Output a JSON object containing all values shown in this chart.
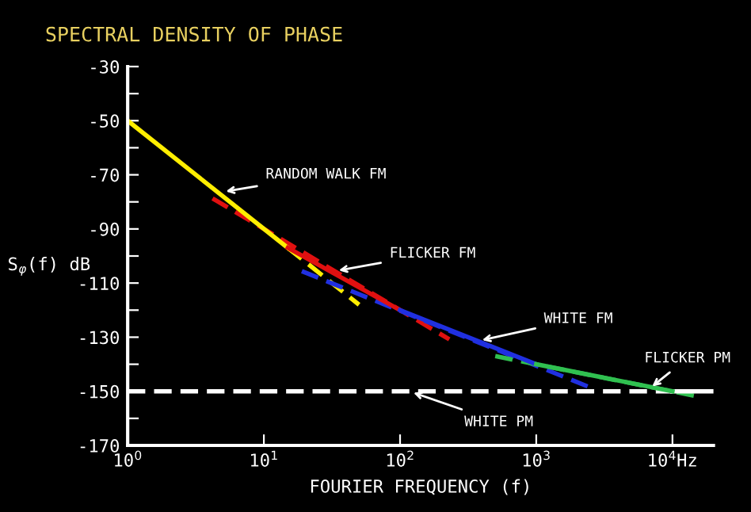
{
  "chart_data": {
    "type": "line",
    "title": "SPECTRAL DENSITY OF PHASE",
    "xlabel": "FOURIER FREQUENCY (f)",
    "ylabel": "S$_{φ}$(f) dB",
    "log": "x",
    "grid": false,
    "legend": false,
    "marker": "none",
    "xlim": [
      1,
      20000
    ],
    "xticks": [
      {
        "value": 1,
        "label": "10$^{0}$"
      },
      {
        "value": 10,
        "label": "10$^{1}$"
      },
      {
        "value": 100,
        "label": "10$^{2}$"
      },
      {
        "value": 1000,
        "label": "10$^{3}$"
      },
      {
        "value": 10000,
        "label": "10$^{4}$Hz"
      }
    ],
    "ylim": [
      -170,
      -30
    ],
    "yticks": [
      -30,
      {
        "value": -40,
        "label": null
      },
      -50,
      {
        "value": -60,
        "label": null
      },
      -70,
      {
        "value": -80,
        "label": null
      },
      -90,
      {
        "value": -100,
        "label": null
      },
      -110,
      {
        "value": -120,
        "label": null
      },
      -130,
      {
        "value": -140,
        "label": null
      },
      -150,
      {
        "value": -160,
        "label": null
      },
      -170
    ],
    "series": [
      {
        "color": "#ffee00",
        "line_style": "dashed",
        "x": [
          15,
          50
        ],
        "values": [
          -97,
          -118
        ]
      },
      {
        "color": "#e01010",
        "line_style": "dashed",
        "x": [
          4.2,
          230
        ],
        "values": [
          -78.7,
          -130.8
        ]
      },
      {
        "color": "#2030e0",
        "line_style": "dashed",
        "x": [
          19,
          2500
        ],
        "values": [
          -105.6,
          -148.6
        ]
      },
      {
        "color": "#30c050",
        "line_style": "dashed",
        "x": [
          500,
          15000
        ],
        "values": [
          -137,
          -151.8
        ]
      },
      {
        "color": "#ffffff",
        "line_style": "dashed",
        "x": [
          1,
          10000
        ],
        "values": [
          -150,
          -150
        ]
      },
      {
        "color": "#ffffff",
        "line_style": "solid",
        "x": [
          10000,
          20000
        ],
        "values": [
          -150,
          -150
        ]
      },
      {
        "color": "#ffee00",
        "line_style": "solid",
        "x": [
          1,
          15
        ],
        "values": [
          -50,
          -97
        ]
      },
      {
        "color": "#e01010",
        "line_style": "solid",
        "x": [
          15,
          100
        ],
        "values": [
          -97,
          -120
        ]
      },
      {
        "color": "#2030e0",
        "line_style": "solid",
        "x": [
          100,
          1000
        ],
        "values": [
          -120,
          -140
        ]
      },
      {
        "color": "#30c050",
        "line_style": "solid",
        "x": [
          1000,
          10000
        ],
        "values": [
          -140,
          -150
        ]
      }
    ],
    "annotations": [
      {
        "text": "RANDOM WALK FM",
        "x": 4.9,
        "y": -76.4
      },
      {
        "text": "FLICKER FM",
        "x": 33,
        "y": -105.6
      },
      {
        "text": "WHITE FM",
        "x": 373,
        "y": -131.4
      },
      {
        "text": "FLICKER PM",
        "x": 6700,
        "y": -149.2
      },
      {
        "text": "WHITE PM",
        "x": 117,
        "y": -150
      }
    ]
  }
}
